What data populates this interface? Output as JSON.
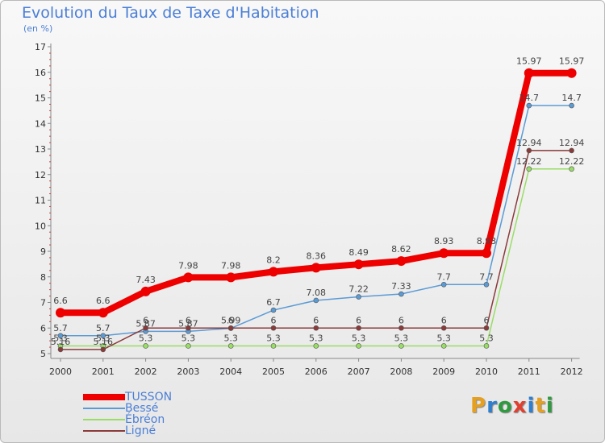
{
  "title": "Evolution du Taux de Taxe d'Habitation",
  "unit_label": "(en %)",
  "logo": {
    "letters": [
      "P",
      "r",
      "o",
      "x",
      "i",
      "t",
      "i"
    ],
    "colors": [
      "#e6a020",
      "#2f7fcf",
      "#2f9a3f",
      "#e0402f",
      "#2f7fcf",
      "#e6a020",
      "#2f9a3f"
    ]
  },
  "chart_data": {
    "type": "line",
    "x": [
      "2000",
      "2001",
      "2002",
      "2003",
      "2004",
      "2005",
      "2006",
      "2007",
      "2008",
      "2009",
      "2010",
      "2011",
      "2012"
    ],
    "ylim": [
      5,
      17
    ],
    "yticks": [
      5,
      6,
      7,
      8,
      9,
      10,
      11,
      12,
      13,
      14,
      15,
      16,
      17
    ],
    "grid": false,
    "legend_position": "bottom-left",
    "series": [
      {
        "name": "Bessé",
        "color": "#5b9bd5",
        "width": 1.5,
        "marker": 3,
        "values": [
          5.7,
          5.7,
          5.87,
          5.87,
          5.99,
          6.7,
          7.08,
          7.22,
          7.33,
          7.7,
          7.7,
          14.7,
          14.7
        ],
        "labels": [
          "5.7",
          "5.7",
          "5.87",
          "5.87",
          "5.99",
          "6.7",
          "7.08",
          "7.22",
          "7.33",
          "7.7",
          "7.7",
          "14.7",
          "14.7"
        ]
      },
      {
        "name": "Ébréon",
        "color": "#99dd66",
        "width": 1.5,
        "marker": 3,
        "values": [
          5.3,
          5.3,
          5.3,
          5.3,
          5.3,
          5.3,
          5.3,
          5.3,
          5.3,
          5.3,
          5.3,
          12.22,
          12.22
        ],
        "labels": [
          "5.3",
          "5.3",
          "5.3",
          "5.3",
          "5.3",
          "5.3",
          "5.3",
          "5.3",
          "5.3",
          "5.3",
          "5.3",
          "12.22",
          "12.22"
        ]
      },
      {
        "name": "Ligné",
        "color": "#8b3a3a",
        "width": 1.5,
        "marker": 3,
        "values": [
          5.16,
          5.16,
          6,
          6,
          6,
          6,
          6,
          6,
          6,
          6,
          6,
          12.94,
          12.94
        ],
        "labels": [
          "5.16",
          "5.16",
          "6",
          "6",
          "6",
          "6",
          "6",
          "6",
          "6",
          "6",
          "6",
          "12.94",
          "12.94"
        ]
      },
      {
        "name": "TUSSON",
        "color": "#ee0000",
        "width": 8,
        "marker": 6,
        "values": [
          6.6,
          6.6,
          7.43,
          7.98,
          7.98,
          8.2,
          8.36,
          8.49,
          8.62,
          8.93,
          8.93,
          15.97,
          15.97
        ],
        "labels": [
          "6.6",
          "6.6",
          "7.43",
          "7.98",
          "7.98",
          "8.2",
          "8.36",
          "8.49",
          "8.62",
          "8.93",
          "8.93",
          "15.97",
          "15.97"
        ]
      }
    ],
    "legend": [
      {
        "name": "TUSSON",
        "color": "#ee0000",
        "width": 8
      },
      {
        "name": "Bessé",
        "color": "#5b9bd5",
        "width": 2
      },
      {
        "name": "Ébréon",
        "color": "#99dd66",
        "width": 2
      },
      {
        "name": "Ligné",
        "color": "#8b3a3a",
        "width": 2
      }
    ]
  }
}
